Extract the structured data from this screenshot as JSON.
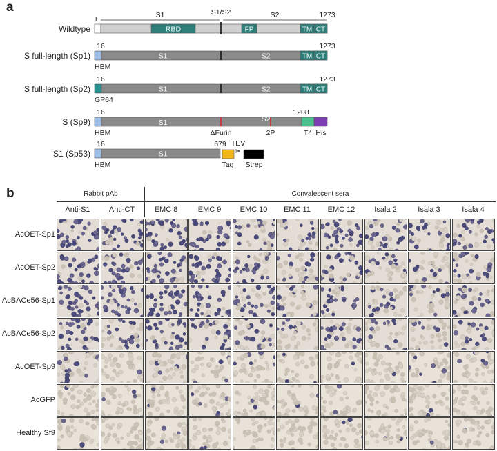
{
  "panel_a": {
    "letter": "a",
    "constructs": [
      {
        "name": "Wildtype",
        "start_label": "1",
        "end_label": "1273",
        "n_label": "",
        "n_color": "#ffffff",
        "backbone_color": "#d0d0d0",
        "top_labels": [
          "S1",
          "S1/S2",
          "S2"
        ],
        "bar_labels": [
          "RBD",
          "FP",
          "TM",
          "CT"
        ],
        "below_labels": []
      },
      {
        "name": "S full-length (Sp1)",
        "start_label": "16",
        "end_label": "1273",
        "n_label": "HBM",
        "n_color": "#9dbde6",
        "backbone_color": "#8a8a8a",
        "top_labels": [],
        "bar_labels": [
          "S1",
          "S2",
          "TM",
          "CT"
        ],
        "below_labels": []
      },
      {
        "name": "S full-length (Sp2)",
        "start_label": "16",
        "end_label": "1273",
        "n_label": "GP64",
        "n_color": "#26918f",
        "backbone_color": "#8a8a8a",
        "top_labels": [],
        "bar_labels": [
          "S1",
          "S2",
          "TM",
          "CT"
        ],
        "below_labels": []
      },
      {
        "name": "S (Sp9)",
        "start_label": "16",
        "end_label": "1208",
        "n_label": "HBM",
        "n_color": "#9dbde6",
        "backbone_color": "#8a8a8a",
        "top_labels": [],
        "bar_labels": [
          "S1",
          "S2"
        ],
        "below_labels": [
          "ΔFurin",
          "2P",
          "T4",
          "His"
        ]
      },
      {
        "name": "S1 (Sp53)",
        "start_label": "16",
        "end_label": "679",
        "n_label": "HBM",
        "n_color": "#9dbde6",
        "backbone_color": "#8a8a8a",
        "top_labels": [
          "TEV"
        ],
        "bar_labels": [
          "S1"
        ],
        "below_labels": [
          "Tag",
          "Strep"
        ]
      }
    ],
    "colors": {
      "domain_teal": "#2e7f7a",
      "furin_red": "#d2232a",
      "t4_green": "#4cc08c",
      "his_purple": "#7d3fb0",
      "tag_yellow": "#f2b51c",
      "strep_black": "#000000"
    }
  },
  "panel_b": {
    "letter": "b",
    "group_headers": [
      "Rabbit pAb",
      "Convalescent sera"
    ],
    "columns": [
      "Anti-S1",
      "Anti-CT",
      "EMC 8",
      "EMC 9",
      "EMC 10",
      "EMC 11",
      "EMC 12",
      "Isala 2",
      "Isala 3",
      "Isala 4"
    ],
    "rows": [
      "AcOET-Sp1",
      "AcOET-Sp2",
      "AcBACe56-Sp1",
      "AcBACe56-Sp2",
      "AcOET-Sp9",
      "AcGFP",
      "Healthy Sf9"
    ],
    "stain_intensity": [
      [
        0.85,
        0.8,
        0.9,
        0.85,
        0.7,
        0.35,
        0.8,
        0.5,
        0.35,
        0.6
      ],
      [
        0.8,
        0.7,
        0.75,
        0.8,
        0.55,
        0.3,
        0.6,
        0.3,
        0.2,
        0.35
      ],
      [
        0.9,
        0.65,
        0.85,
        0.85,
        0.75,
        0.45,
        0.75,
        0.45,
        0.35,
        0.5
      ],
      [
        0.8,
        0.55,
        0.7,
        0.7,
        0.5,
        0.3,
        0.5,
        0.3,
        0.25,
        0.35
      ],
      [
        0.5,
        0.05,
        0.2,
        0.15,
        0.1,
        0.05,
        0.1,
        0.1,
        0.1,
        0.1
      ],
      [
        0.05,
        0.05,
        0.05,
        0.05,
        0.05,
        0.05,
        0.05,
        0.05,
        0.05,
        0.05
      ],
      [
        0.05,
        0.05,
        0.05,
        0.05,
        0.05,
        0.05,
        0.05,
        0.05,
        0.05,
        0.05
      ]
    ]
  }
}
